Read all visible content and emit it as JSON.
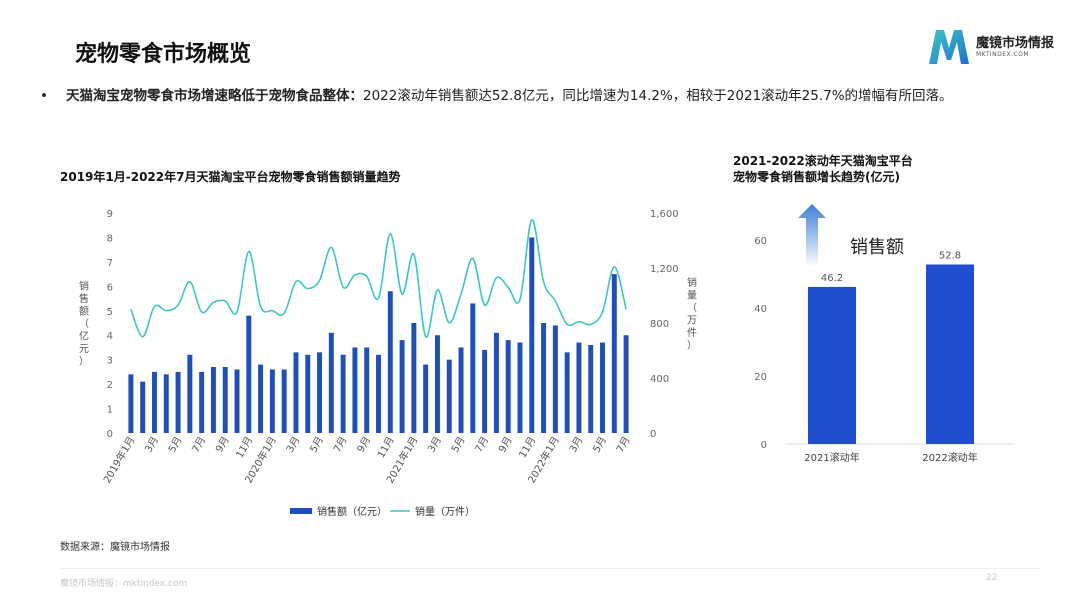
{
  "page": {
    "title": "宠物零食市场概览",
    "bullet_bold": "天猫淘宝宠物零食市场增速略低于宠物食品整体：",
    "bullet_text": "2022滚动年销售额达52.8亿元，同比增速为14.2%，相较于2021滚动年25.7%的增幅有所回落。",
    "source": "数据来源：魔镜市场情报",
    "footer": "魔镜市场情报：mktindex.com",
    "page_number": "22"
  },
  "logo": {
    "name": "魔镜市场情报",
    "sub": "MKTINDEX.COM"
  },
  "colors": {
    "bar": "#1f4fbf",
    "line": "#3fc7be",
    "bar_right": "#1f4fcf",
    "arrow_top": "#3f7fd6",
    "arrow_bottom": "#ffffff"
  },
  "chart_data": [
    {
      "type": "bar",
      "title": "2019年1月-2022年7月天猫淘宝平台宠物零食销售额销量趋势",
      "ylabel": "销售额（亿元）",
      "y2label": "销量（万件）",
      "ylim": [
        0,
        9
      ],
      "yticks": [
        0,
        1,
        2,
        3,
        4,
        5,
        6,
        7,
        8,
        9
      ],
      "y2lim": [
        0,
        1600
      ],
      "y2ticks": [
        "0",
        "400",
        "800",
        "1,200",
        "1,600"
      ],
      "x": [
        "2019年1月",
        "2019年2月",
        "2019年3月",
        "2019年4月",
        "2019年5月",
        "2019年6月",
        "2019年7月",
        "2019年8月",
        "2019年9月",
        "2019年10月",
        "2019年11月",
        "2019年12月",
        "2020年1月",
        "2020年2月",
        "2020年3月",
        "2020年4月",
        "2020年5月",
        "2020年6月",
        "2020年7月",
        "2020年8月",
        "2020年9月",
        "2020年10月",
        "2020年11月",
        "2020年12月",
        "2021年1月",
        "2021年2月",
        "2021年3月",
        "2021年4月",
        "2021年5月",
        "2021年6月",
        "2021年7月",
        "2021年8月",
        "2021年9月",
        "2021年10月",
        "2021年11月",
        "2021年12月",
        "2022年1月",
        "2022年2月",
        "2022年3月",
        "2022年4月",
        "2022年5月",
        "2022年6月",
        "2022年7月"
      ],
      "xtick_labels": [
        "2019年1月",
        "3月",
        "5月",
        "7月",
        "9月",
        "11月",
        "2020年1月",
        "3月",
        "5月",
        "7月",
        "9月",
        "11月",
        "2021年1月",
        "3月",
        "5月",
        "7月",
        "9月",
        "11月",
        "2022年1月",
        "3月",
        "5月",
        "7月"
      ],
      "series": [
        {
          "name": "销售额（亿元）",
          "type": "bar",
          "values": [
            2.4,
            2.1,
            2.5,
            2.4,
            2.5,
            3.2,
            2.5,
            2.7,
            2.7,
            2.6,
            4.8,
            2.8,
            2.6,
            2.6,
            3.3,
            3.2,
            3.3,
            4.1,
            3.2,
            3.5,
            3.5,
            3.2,
            5.8,
            3.8,
            4.5,
            2.8,
            4.0,
            3.0,
            3.5,
            5.3,
            3.4,
            4.1,
            3.8,
            3.7,
            8.0,
            4.5,
            4.4,
            3.3,
            3.7,
            3.6,
            3.7,
            6.5,
            4.0
          ]
        },
        {
          "name": "销量（万件）",
          "type": "line",
          "values": [
            900,
            700,
            920,
            890,
            930,
            1100,
            880,
            950,
            960,
            880,
            1320,
            920,
            890,
            870,
            1100,
            1050,
            1110,
            1350,
            1060,
            1150,
            1140,
            980,
            1450,
            1010,
            1300,
            700,
            1040,
            800,
            1010,
            1270,
            930,
            1130,
            1060,
            970,
            1550,
            1100,
            960,
            790,
            810,
            790,
            880,
            1210,
            900
          ]
        }
      ],
      "legend": "bottom"
    },
    {
      "type": "bar",
      "title": "2021-2022滚动年天猫淘宝平台宠物零食销售额增长趋势(亿元)",
      "title_lines": [
        "2021-2022滚动年天猫淘宝平台",
        "宠物零食销售额增长趋势(亿元)"
      ],
      "categories": [
        "2021滚动年",
        "2022滚动年"
      ],
      "values": [
        46.2,
        52.8
      ],
      "data_labels": [
        "46.2",
        "52.8"
      ],
      "ylim": [
        0,
        60
      ],
      "yticks": [
        0,
        20,
        40,
        60
      ],
      "annotation": "销售额"
    }
  ]
}
